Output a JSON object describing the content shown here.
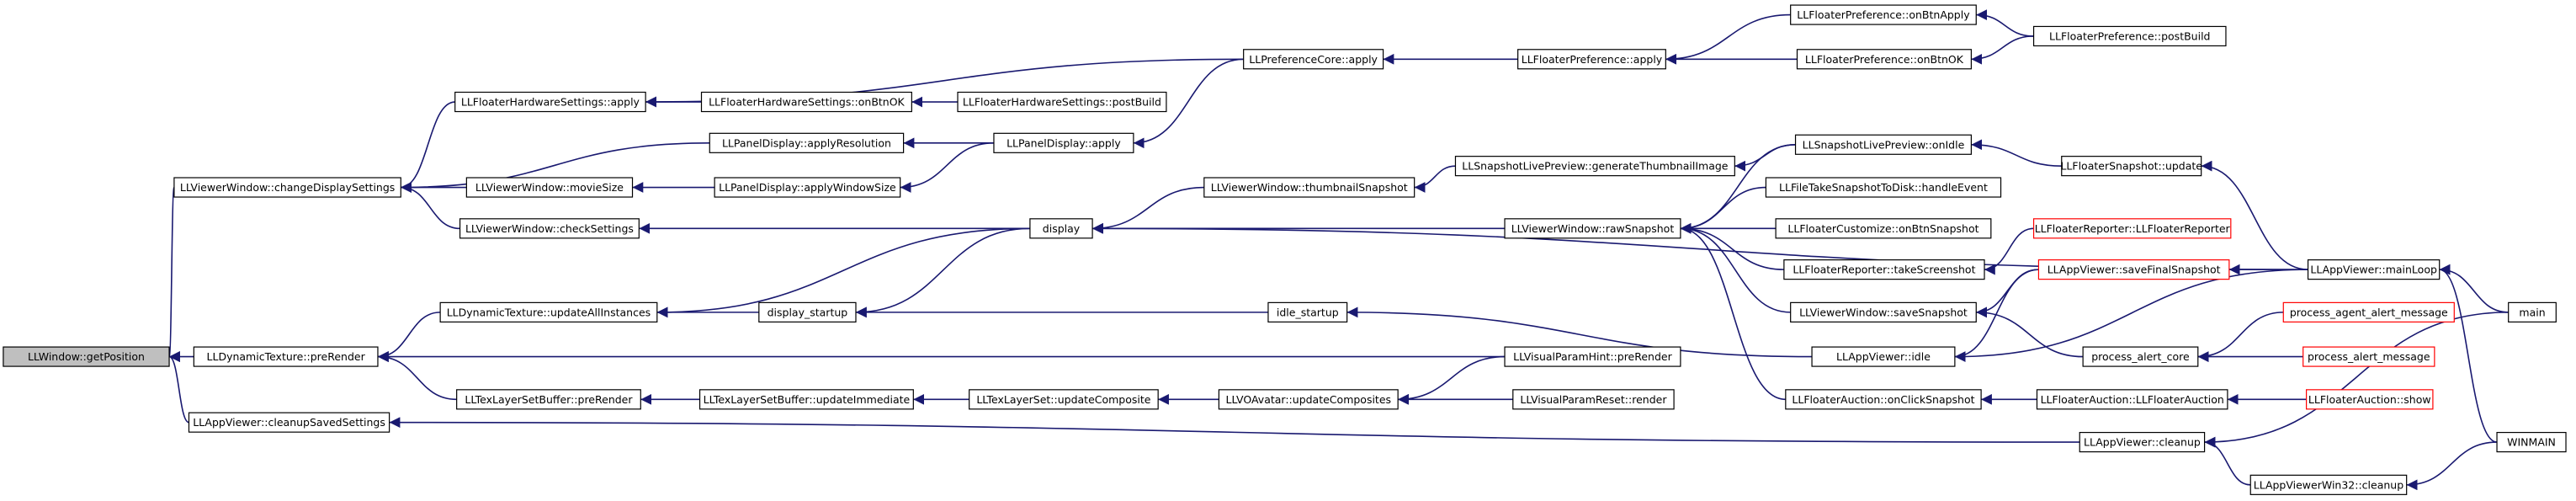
{
  "nodes": [
    "LLWindow::getPosition",
    "LLViewerWindow::changeDisplaySettings",
    "LLDynamicTexture::preRender",
    "LLAppViewer::cleanupSavedSettings",
    "LLFloaterHardwareSettings::apply",
    "LLViewerWindow::movieSize",
    "LLViewerWindow::checkSettings",
    "LLDynamicTexture::updateAllInstances",
    "LLTexLayerSetBuffer::preRender",
    "LLFloaterHardwareSettings::onBtnOK",
    "LLFloaterHardwareSettings::postBuild",
    "LLPanelDisplay::applyResolution",
    "LLPanelDisplay::applyWindowSize",
    "display",
    "display_startup",
    "LLTexLayerSetBuffer::updateImmediate",
    "LLPanelDisplay::apply",
    "LLPreferenceCore::apply",
    "LLViewerWindow::thumbnailSnapshot",
    "idle_startup",
    "LLTexLayerSet::updateComposite",
    "LLVOAvatar::updateComposites",
    "LLFloaterPreference::apply",
    "LLSnapshotLivePreview::generateThumbnailImage",
    "LLViewerWindow::rawSnapshot",
    "LLVisualParamHint::preRender",
    "LLVisualParamReset::render",
    "LLAppViewer::cleanup",
    "LLFloaterPreference::onBtnApply",
    "LLFloaterPreference::onBtnOK",
    "LLSnapshotLivePreview::onIdle",
    "LLFileTakeSnapshotToDisk::handleEvent",
    "LLFloaterCustomize::onBtnSnapshot",
    "LLFloaterReporter::takeScreenshot",
    "LLViewerWindow::saveSnapshot",
    "LLAppViewer::idle",
    "LLFloaterAuction::onClickSnapshot",
    "LLFloaterPreference::postBuild",
    "LLFloaterSnapshot::update",
    "LLFloaterReporter::LLFloaterReporter",
    "LLAppViewer::saveFinalSnapshot",
    "process_alert_core",
    "LLFloaterAuction::LLFloaterAuction",
    "LLAppViewerWin32::cleanup",
    "LLAppViewer::mainLoop",
    "process_agent_alert_message",
    "process_alert_message",
    "LLFloaterAuction::show",
    "main",
    "WINMAIN"
  ]
}
